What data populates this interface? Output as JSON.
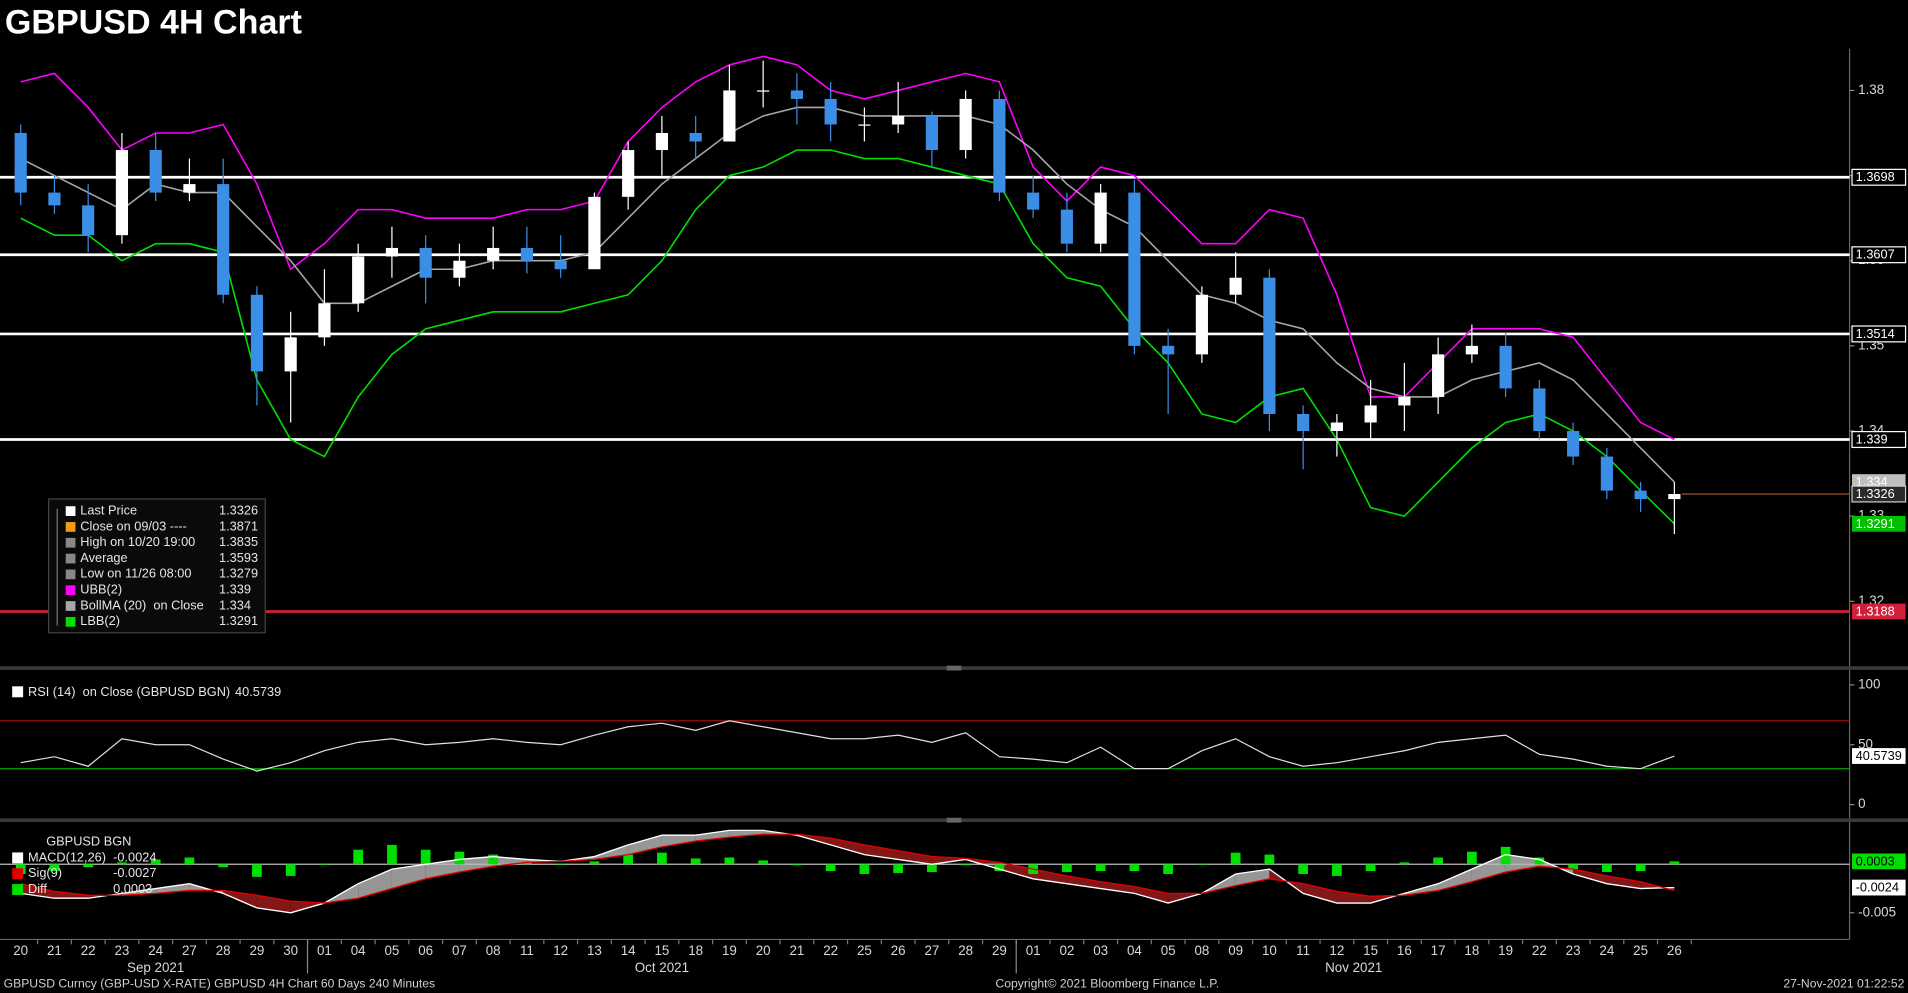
{
  "title": "GBPUSD 4H Chart",
  "footer": {
    "left": "GBPUSD Curncy (GBP-USD X-RATE) GBPUSD 4H Chart 60 Days 240 Minutes",
    "center": "Copyright© 2021 Bloomberg Finance L.P.",
    "right": "27-Nov-2021 01:22:52"
  },
  "chart_data": [
    {
      "type": "candlestick",
      "categories": [
        "20",
        "21",
        "22",
        "23",
        "24",
        "27",
        "28",
        "29",
        "30",
        "01",
        "04",
        "05",
        "06",
        "07",
        "08",
        "11",
        "12",
        "13",
        "14",
        "15",
        "18",
        "19",
        "20",
        "21",
        "22",
        "25",
        "26",
        "27",
        "28",
        "29",
        "01",
        "02",
        "03",
        "04",
        "05",
        "08",
        "09",
        "10",
        "11",
        "12",
        "15",
        "16",
        "17",
        "18",
        "19",
        "22",
        "23",
        "24",
        "25",
        "26"
      ],
      "months": [
        "Sep 2021",
        "Oct 2021",
        "Nov 2021"
      ],
      "open": [
        1.375,
        1.368,
        1.3665,
        1.363,
        1.373,
        1.368,
        1.369,
        1.356,
        1.347,
        1.351,
        1.355,
        1.3605,
        1.3615,
        1.358,
        1.36,
        1.3615,
        1.36,
        1.359,
        1.3675,
        1.373,
        1.375,
        1.374,
        1.38,
        1.38,
        1.379,
        1.376,
        1.376,
        1.377,
        1.373,
        1.379,
        1.368,
        1.366,
        1.362,
        1.368,
        1.35,
        1.349,
        1.356,
        1.358,
        1.342,
        1.34,
        1.341,
        1.343,
        1.344,
        1.349,
        1.35,
        1.345,
        1.34,
        1.337,
        1.333,
        1.332
      ],
      "high": [
        1.376,
        1.37,
        1.369,
        1.375,
        1.375,
        1.372,
        1.372,
        1.357,
        1.354,
        1.359,
        1.362,
        1.364,
        1.363,
        1.362,
        1.364,
        1.364,
        1.363,
        1.368,
        1.374,
        1.377,
        1.377,
        1.383,
        1.3835,
        1.382,
        1.381,
        1.378,
        1.381,
        1.3775,
        1.38,
        1.38,
        1.37,
        1.368,
        1.369,
        1.3695,
        1.352,
        1.357,
        1.361,
        1.359,
        1.343,
        1.342,
        1.346,
        1.348,
        1.351,
        1.3525,
        1.3515,
        1.346,
        1.341,
        1.338,
        1.334,
        1.334
      ],
      "low": [
        1.3665,
        1.3655,
        1.361,
        1.362,
        1.367,
        1.367,
        1.355,
        1.343,
        1.341,
        1.35,
        1.354,
        1.358,
        1.355,
        1.357,
        1.359,
        1.3585,
        1.358,
        1.359,
        1.366,
        1.37,
        1.372,
        1.374,
        1.378,
        1.376,
        1.374,
        1.374,
        1.375,
        1.371,
        1.372,
        1.367,
        1.365,
        1.361,
        1.361,
        1.349,
        1.342,
        1.348,
        1.355,
        1.34,
        1.3355,
        1.337,
        1.339,
        1.34,
        1.342,
        1.348,
        1.344,
        1.339,
        1.336,
        1.332,
        1.3305,
        1.3279
      ],
      "close": [
        1.368,
        1.3665,
        1.363,
        1.373,
        1.368,
        1.369,
        1.356,
        1.347,
        1.351,
        1.355,
        1.3605,
        1.3615,
        1.358,
        1.36,
        1.3615,
        1.36,
        1.359,
        1.3675,
        1.373,
        1.375,
        1.374,
        1.38,
        1.38,
        1.379,
        1.376,
        1.376,
        1.377,
        1.373,
        1.379,
        1.368,
        1.366,
        1.362,
        1.368,
        1.35,
        1.349,
        1.356,
        1.358,
        1.342,
        1.34,
        1.341,
        1.343,
        1.344,
        1.349,
        1.35,
        1.345,
        1.34,
        1.337,
        1.333,
        1.332,
        1.3326
      ],
      "up_color": "#ffffff",
      "down_color": "#3a8ee6",
      "series": [
        {
          "name": "UBB(2)",
          "color": "#ff00ff",
          "values": [
            1.381,
            1.382,
            1.378,
            1.373,
            1.375,
            1.375,
            1.376,
            1.369,
            1.359,
            1.362,
            1.366,
            1.366,
            1.365,
            1.365,
            1.365,
            1.366,
            1.366,
            1.367,
            1.374,
            1.378,
            1.381,
            1.383,
            1.384,
            1.383,
            1.38,
            1.379,
            1.38,
            1.381,
            1.382,
            1.381,
            1.371,
            1.367,
            1.371,
            1.37,
            1.366,
            1.362,
            1.362,
            1.366,
            1.365,
            1.356,
            1.344,
            1.344,
            1.348,
            1.352,
            1.352,
            1.352,
            1.351,
            1.346,
            1.341,
            1.339
          ]
        },
        {
          "name": "BollMA (20)  on Close",
          "color": "#a6a6a6",
          "tag_color": "#bfbfbf",
          "values": [
            1.372,
            1.37,
            1.368,
            1.366,
            1.369,
            1.368,
            1.368,
            1.364,
            1.36,
            1.355,
            1.355,
            1.357,
            1.359,
            1.359,
            1.36,
            1.36,
            1.36,
            1.361,
            1.365,
            1.369,
            1.372,
            1.375,
            1.377,
            1.378,
            1.378,
            1.377,
            1.377,
            1.377,
            1.377,
            1.376,
            1.373,
            1.369,
            1.366,
            1.364,
            1.36,
            1.356,
            1.355,
            1.353,
            1.352,
            1.348,
            1.345,
            1.344,
            1.344,
            1.346,
            1.347,
            1.348,
            1.346,
            1.342,
            1.338,
            1.334
          ]
        },
        {
          "name": "LBB(2)",
          "color": "#00e000",
          "tag_color": "#00c000",
          "values": [
            1.365,
            1.363,
            1.363,
            1.36,
            1.362,
            1.362,
            1.361,
            1.346,
            1.339,
            1.337,
            1.344,
            1.349,
            1.352,
            1.353,
            1.354,
            1.354,
            1.354,
            1.355,
            1.356,
            1.36,
            1.366,
            1.37,
            1.371,
            1.373,
            1.373,
            1.372,
            1.372,
            1.371,
            1.37,
            1.369,
            1.362,
            1.358,
            1.357,
            1.352,
            1.348,
            1.342,
            1.341,
            1.344,
            1.345,
            1.339,
            1.331,
            1.33,
            1.334,
            1.338,
            1.341,
            1.342,
            1.34,
            1.337,
            1.333,
            1.3291
          ]
        }
      ],
      "stats": [
        {
          "label": "Last Price",
          "value": 1.3326,
          "color": "#ffffff"
        },
        {
          "label": "Close on 09/03 ----",
          "value": 1.3871,
          "color": "#f39c12"
        },
        {
          "label": "High on 10/20 19:00",
          "value": 1.3835,
          "color": "#888888"
        },
        {
          "label": "Average",
          "value": 1.3593,
          "color": "#888888"
        },
        {
          "label": "Low on 11/26 08:00",
          "value": 1.3279,
          "color": "#888888"
        }
      ],
      "hlines": [
        {
          "value": 1.3698,
          "color": "#ffffff"
        },
        {
          "value": 1.3607,
          "color": "#ffffff"
        },
        {
          "value": 1.3514,
          "color": "#ffffff"
        },
        {
          "value": 1.339,
          "color": "#ffffff"
        },
        {
          "value": 1.3188,
          "color": "#d0203a"
        }
      ],
      "ylim": [
        1.3123,
        1.3849
      ],
      "yticks": [
        1.32,
        1.33,
        1.34,
        1.35,
        1.36,
        1.37,
        1.38
      ]
    },
    {
      "type": "line",
      "title": "RSI (14)  on Close (GBPUSD BGN)",
      "color": "#e0e0e0",
      "values": [
        35,
        40,
        32,
        55,
        50,
        50,
        38,
        28,
        35,
        45,
        52,
        55,
        50,
        52,
        55,
        52,
        50,
        58,
        65,
        68,
        62,
        70,
        65,
        60,
        55,
        55,
        58,
        52,
        60,
        40,
        38,
        35,
        48,
        30,
        30,
        45,
        55,
        40,
        32,
        35,
        40,
        45,
        52,
        55,
        58,
        42,
        38,
        32,
        30,
        40.5739
      ],
      "levels": [
        {
          "value": 70,
          "color": "#b01010"
        },
        {
          "value": 30,
          "color": "#00b000"
        }
      ],
      "ylim": [
        -11,
        111
      ],
      "yticks": [
        0,
        50,
        100
      ]
    },
    {
      "type": "macd",
      "title": "GBPUSD BGN",
      "series": [
        {
          "name": "MACD(12,26)",
          "color": "#ffffff",
          "tag_color": "#ffffff",
          "values": [
            -0.003,
            -0.0035,
            -0.0035,
            -0.003,
            -0.0025,
            -0.002,
            -0.003,
            -0.0045,
            -0.005,
            -0.004,
            -0.002,
            -0.0005,
            0,
            0.0005,
            0.0008,
            0.0005,
            0.0003,
            0.0008,
            0.002,
            0.003,
            0.003,
            0.0035,
            0.0035,
            0.003,
            0.002,
            0.001,
            0.0005,
            0,
            0.0005,
            -0.0005,
            -0.0015,
            -0.002,
            -0.0025,
            -0.003,
            -0.004,
            -0.003,
            -0.001,
            -0.0005,
            -0.003,
            -0.004,
            -0.004,
            -0.003,
            -0.002,
            -0.0005,
            0.001,
            0.0005,
            -0.001,
            -0.002,
            -0.0025,
            -0.0024
          ]
        },
        {
          "name": "Sig(9)",
          "color": "#e00000",
          "values": [
            -0.002,
            -0.0028,
            -0.0032,
            -0.0032,
            -0.003,
            -0.0027,
            -0.0027,
            -0.0032,
            -0.0038,
            -0.004,
            -0.0035,
            -0.0025,
            -0.0015,
            -0.0008,
            -0.0002,
            0.0002,
            0.0003,
            0.0005,
            0.001,
            0.0018,
            0.0024,
            0.0028,
            0.0031,
            0.0031,
            0.0027,
            0.002,
            0.0014,
            0.0008,
            0.0006,
            0.0002,
            -0.0005,
            -0.0012,
            -0.0018,
            -0.0023,
            -0.003,
            -0.003,
            -0.0022,
            -0.0015,
            -0.002,
            -0.0028,
            -0.0033,
            -0.0032,
            -0.0027,
            -0.0018,
            -0.0008,
            -0.0002,
            -0.0005,
            -0.0012,
            -0.0018,
            -0.0027
          ]
        },
        {
          "name": "Diff",
          "color": "#00e000",
          "tag_color": "#00e000",
          "values": [
            -0.001,
            -0.0007,
            -0.0003,
            0.0002,
            0.0005,
            0.0007,
            -0.0003,
            -0.0013,
            -0.0012,
            0,
            0.0015,
            0.002,
            0.0015,
            0.0013,
            0.001,
            0.0003,
            0,
            0.0003,
            0.001,
            0.0012,
            0.0006,
            0.0007,
            0.0004,
            -0.0001,
            -0.0007,
            -0.001,
            -0.0009,
            -0.0008,
            -0.0001,
            -0.0007,
            -0.001,
            -0.0008,
            -0.0007,
            -0.0007,
            -0.001,
            0,
            0.0012,
            0.001,
            -0.001,
            -0.0012,
            -0.0007,
            0.0002,
            0.0007,
            0.0013,
            0.0018,
            0.0007,
            -0.0005,
            -0.0008,
            -0.0007,
            0.0003
          ]
        }
      ],
      "ylim": [
        -0.0075,
        0.0043
      ],
      "yticks": [
        -0.005
      ]
    }
  ]
}
